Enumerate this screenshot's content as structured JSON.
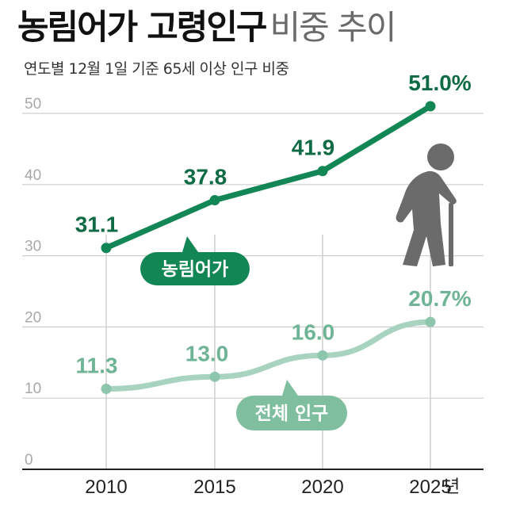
{
  "title": {
    "main": "농림어가 고령인구",
    "sub": "비중 추이"
  },
  "subtitle": "연도별 12월 1일 기준 65세 이상 인구 비중",
  "colors": {
    "farm": "#138655",
    "farm_label": "#0f6b45",
    "total": "#a8d3c1",
    "total_label": "#6fb496",
    "total_point": "#8ec5ad",
    "total_tag": "#7fbf9f",
    "grid": "#cfcfcf",
    "figure": "#6b6b6b"
  },
  "chart_data": {
    "type": "line",
    "categories": [
      "2010",
      "2015",
      "2020",
      "2025"
    ],
    "x_unit": "년",
    "ylim": [
      0,
      50
    ],
    "yticks": [
      "0",
      "10",
      "20",
      "30",
      "40",
      "50"
    ],
    "grid": true,
    "series": [
      {
        "name": "농림어가",
        "values": [
          31.1,
          37.8,
          41.9,
          51.0
        ],
        "labels": [
          "31.1",
          "37.8",
          "41.9",
          "51.0%"
        ]
      },
      {
        "name": "전체 인구",
        "values": [
          11.3,
          13.0,
          16.0,
          20.7
        ],
        "labels": [
          "11.3",
          "13.0",
          "16.0",
          "20.7%"
        ]
      }
    ]
  }
}
